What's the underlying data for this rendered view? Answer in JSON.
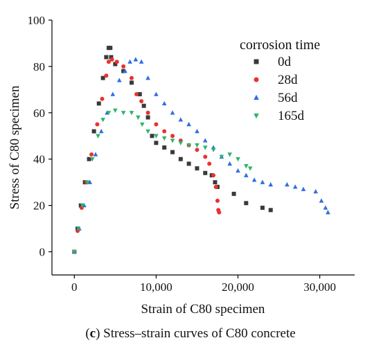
{
  "caption": {
    "open_paren": "(",
    "letter": "c",
    "rest": ") Stress–strain curves of C80 concrete"
  },
  "chart_data": {
    "type": "scatter",
    "title": "",
    "xlabel": "Strain of C80 specimen",
    "ylabel": "Stress of C80 specimen",
    "xlim": [
      -2000,
      35000
    ],
    "ylim": [
      -10,
      100
    ],
    "x_ticks": [
      0,
      10000,
      20000,
      30000
    ],
    "x_tick_labels": [
      "0",
      "10,000",
      "20,000",
      "30,000"
    ],
    "y_ticks": [
      0,
      20,
      40,
      60,
      80,
      100
    ],
    "y_tick_labels": [
      "0",
      "20",
      "40",
      "60",
      "80",
      "100"
    ],
    "grid": false,
    "legend": {
      "title": "corrosion time",
      "placement": "top-right"
    },
    "series": [
      {
        "name": "0d",
        "color": "#3a3a3a",
        "marker": "square",
        "points": [
          [
            0,
            0
          ],
          [
            400,
            10
          ],
          [
            800,
            20
          ],
          [
            1300,
            30
          ],
          [
            1800,
            40
          ],
          [
            2400,
            52
          ],
          [
            3000,
            64
          ],
          [
            3500,
            75
          ],
          [
            3900,
            84
          ],
          [
            4200,
            88
          ],
          [
            4400,
            88
          ],
          [
            4500,
            84
          ],
          [
            5000,
            81
          ],
          [
            6000,
            78
          ],
          [
            7000,
            73
          ],
          [
            8000,
            68
          ],
          [
            8500,
            63
          ],
          [
            9000,
            58
          ],
          [
            9500,
            50
          ],
          [
            10000,
            47
          ],
          [
            11000,
            45
          ],
          [
            12000,
            43
          ],
          [
            13000,
            40
          ],
          [
            14000,
            38
          ],
          [
            15000,
            36
          ],
          [
            16000,
            34
          ],
          [
            16800,
            33
          ],
          [
            17200,
            30
          ],
          [
            17500,
            28
          ],
          [
            19500,
            25
          ],
          [
            21000,
            21
          ],
          [
            23000,
            19
          ],
          [
            24000,
            18
          ]
        ]
      },
      {
        "name": "28d",
        "color": "#e8322d",
        "marker": "circle",
        "points": [
          [
            0,
            0
          ],
          [
            400,
            9
          ],
          [
            900,
            19
          ],
          [
            1500,
            30
          ],
          [
            2100,
            42
          ],
          [
            2800,
            55
          ],
          [
            3400,
            66
          ],
          [
            3900,
            76
          ],
          [
            4200,
            82
          ],
          [
            4600,
            83
          ],
          [
            5200,
            82
          ],
          [
            6000,
            80
          ],
          [
            7000,
            75
          ],
          [
            7600,
            68
          ],
          [
            8200,
            65
          ],
          [
            9000,
            60
          ],
          [
            10000,
            55
          ],
          [
            11000,
            52
          ],
          [
            12000,
            50
          ],
          [
            13000,
            48
          ],
          [
            14000,
            46
          ],
          [
            15000,
            44
          ],
          [
            16000,
            41
          ],
          [
            16500,
            38
          ],
          [
            17000,
            33
          ],
          [
            17300,
            28
          ],
          [
            17500,
            22
          ],
          [
            17600,
            18
          ],
          [
            17700,
            17
          ]
        ]
      },
      {
        "name": "56d",
        "color": "#2f6ee0",
        "marker": "triangle",
        "points": [
          [
            0,
            0
          ],
          [
            600,
            10
          ],
          [
            1200,
            20
          ],
          [
            1900,
            30
          ],
          [
            2600,
            42
          ],
          [
            3300,
            52
          ],
          [
            4000,
            60
          ],
          [
            4700,
            68
          ],
          [
            5500,
            74
          ],
          [
            6200,
            78
          ],
          [
            6800,
            82
          ],
          [
            7500,
            83
          ],
          [
            8200,
            82
          ],
          [
            9000,
            75
          ],
          [
            10000,
            68
          ],
          [
            11000,
            64
          ],
          [
            12000,
            60
          ],
          [
            13000,
            57
          ],
          [
            14000,
            55
          ],
          [
            15000,
            52
          ],
          [
            16000,
            48
          ],
          [
            17000,
            45
          ],
          [
            18000,
            41
          ],
          [
            19000,
            38
          ],
          [
            20000,
            35
          ],
          [
            21000,
            33
          ],
          [
            22000,
            31
          ],
          [
            23000,
            30
          ],
          [
            24000,
            29
          ],
          [
            26000,
            29
          ],
          [
            27000,
            28
          ],
          [
            28000,
            27
          ],
          [
            29500,
            26
          ],
          [
            30200,
            22
          ],
          [
            30700,
            19
          ],
          [
            31000,
            17
          ]
        ]
      },
      {
        "name": "165d",
        "color": "#2fb36b",
        "marker": "triangle-down",
        "points": [
          [
            0,
            0
          ],
          [
            500,
            10
          ],
          [
            1000,
            20
          ],
          [
            1600,
            30
          ],
          [
            2200,
            40
          ],
          [
            2900,
            50
          ],
          [
            3500,
            57
          ],
          [
            4200,
            60
          ],
          [
            5000,
            61
          ],
          [
            6000,
            60
          ],
          [
            7000,
            60
          ],
          [
            7800,
            58
          ],
          [
            8300,
            55
          ],
          [
            9000,
            52
          ],
          [
            10000,
            50
          ],
          [
            11000,
            49
          ],
          [
            12000,
            48
          ],
          [
            13000,
            47
          ],
          [
            14000,
            46
          ],
          [
            15000,
            46
          ],
          [
            16000,
            45
          ],
          [
            17000,
            44
          ],
          [
            18000,
            41
          ],
          [
            19000,
            42
          ],
          [
            20000,
            40
          ],
          [
            21000,
            37
          ],
          [
            21500,
            36
          ]
        ]
      }
    ]
  }
}
